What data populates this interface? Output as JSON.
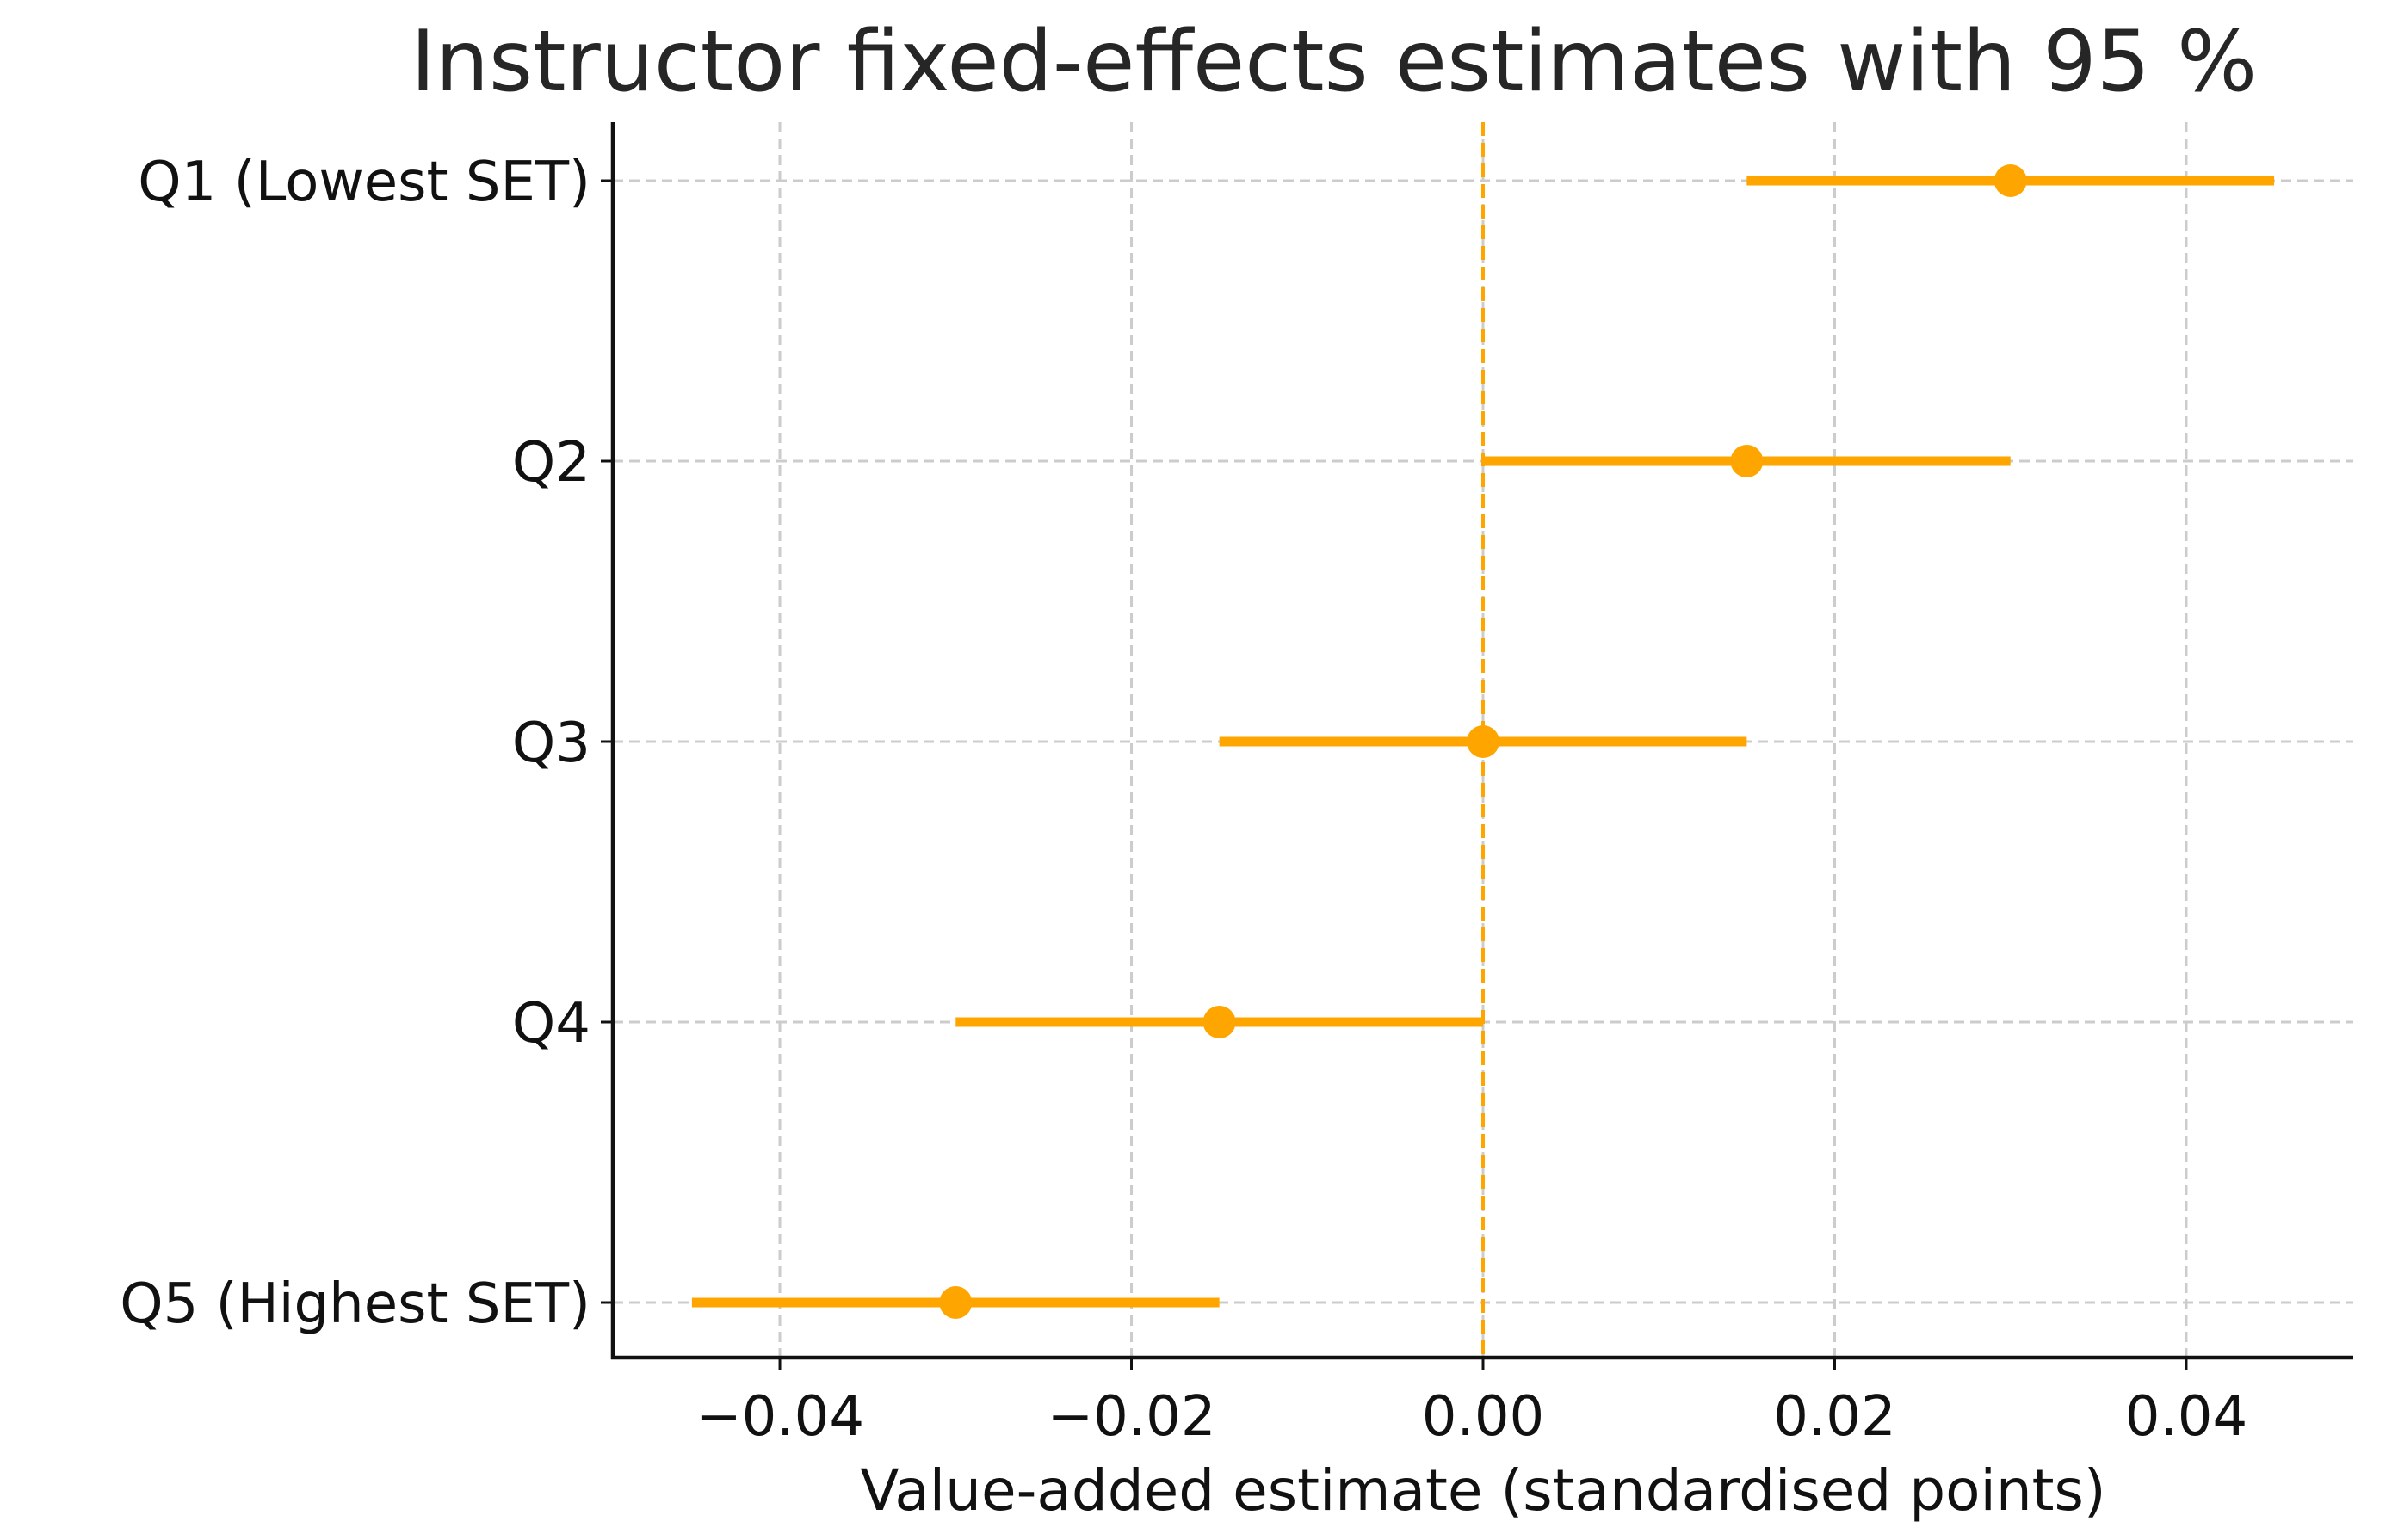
{
  "chart_data": {
    "type": "scatter",
    "subtype": "forest-plot",
    "title": "Instructor fixed-effects estimates with 95 %",
    "xlabel": "Value-added estimate (standardised points)",
    "ylabel": "",
    "categories": [
      "Q1 (Lowest SET)",
      "Q2",
      "Q3",
      "Q4",
      "Q5 (Highest SET)"
    ],
    "estimates": [
      0.03,
      0.015,
      0.0,
      -0.015,
      -0.03
    ],
    "ci_low": [
      0.015,
      0.0,
      -0.015,
      -0.03,
      -0.045
    ],
    "ci_high": [
      0.045,
      0.03,
      0.015,
      0.0,
      -0.015
    ],
    "xlim": [
      -0.0495,
      0.0495
    ],
    "xticks": [
      -0.04,
      -0.02,
      0.0,
      0.02,
      0.04
    ],
    "xtick_labels": [
      "−0.04",
      "−0.02",
      "0.00",
      "0.02",
      "0.04"
    ],
    "reference_line": 0.0,
    "grid": true,
    "colors": {
      "series": "#FFA500",
      "grid": "#cccccc",
      "axis": "#111111"
    }
  }
}
